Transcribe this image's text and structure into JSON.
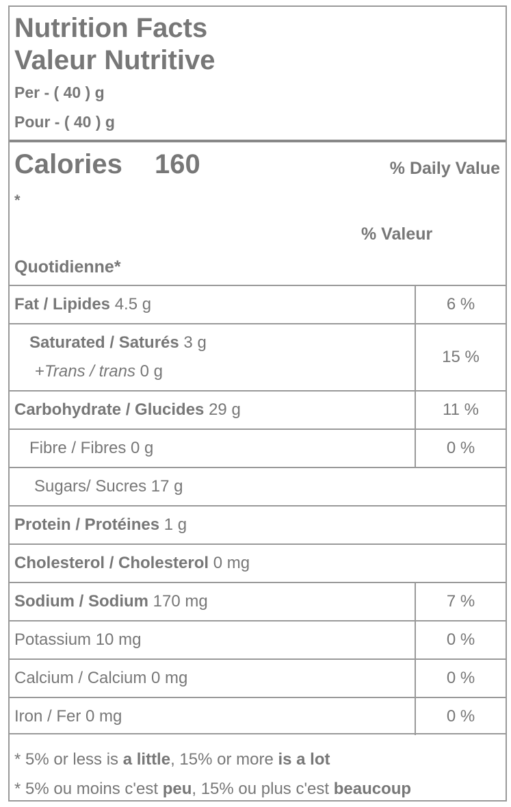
{
  "header": {
    "title_en": "Nutrition Facts",
    "title_fr": "Valeur Nutritive",
    "per": "Per - ( 40 ) g",
    "pour": "Pour - ( 40 ) g"
  },
  "calories": {
    "label": "Calories",
    "value": "160",
    "daily_value_en": "% Daily Value",
    "asterisk": "*",
    "daily_value_fr_1": "% Valeur",
    "daily_value_fr_2": "Quotidienne*"
  },
  "rows": [
    {
      "label": "Fat / Lipides",
      "amount": "4.5 g",
      "pct": "6 %"
    },
    {
      "label": "Saturated / Saturés",
      "amount": "3 g",
      "sub_pre": "+",
      "sub_label": "Trans / trans",
      "sub_amount": "0 g",
      "pct": "15 %"
    },
    {
      "label": "Carbohydrate / Glucides",
      "amount": "29 g",
      "pct": "11 %"
    },
    {
      "label": "Fibre / Fibres 0 g",
      "pct": "0 %"
    },
    {
      "label": "Sugars/ Sucres 17 g"
    },
    {
      "label": "Protein / Protéines",
      "amount": "1 g"
    },
    {
      "label": "Cholesterol / Cholesterol",
      "amount": "0 mg"
    },
    {
      "label": "Sodium / Sodium",
      "amount": "170 mg",
      "pct": "7 %"
    },
    {
      "label": "Potassium 10 mg",
      "pct": "0 %"
    },
    {
      "label": "Calcium / Calcium 0 mg",
      "pct": "0 %"
    },
    {
      "label": "Iron / Fer 0 mg",
      "pct": "0 %"
    }
  ],
  "footnotes": {
    "en": {
      "a": "* 5% or less is ",
      "b": "a little",
      ",c": "",
      "c": ", 15% or more ",
      "d": "is a lot"
    },
    "fr": {
      "a": "* 5% ou moins c'est ",
      "b": "peu",
      "c": ", 15% ou plus c'est ",
      "d": "beaucoup"
    }
  }
}
